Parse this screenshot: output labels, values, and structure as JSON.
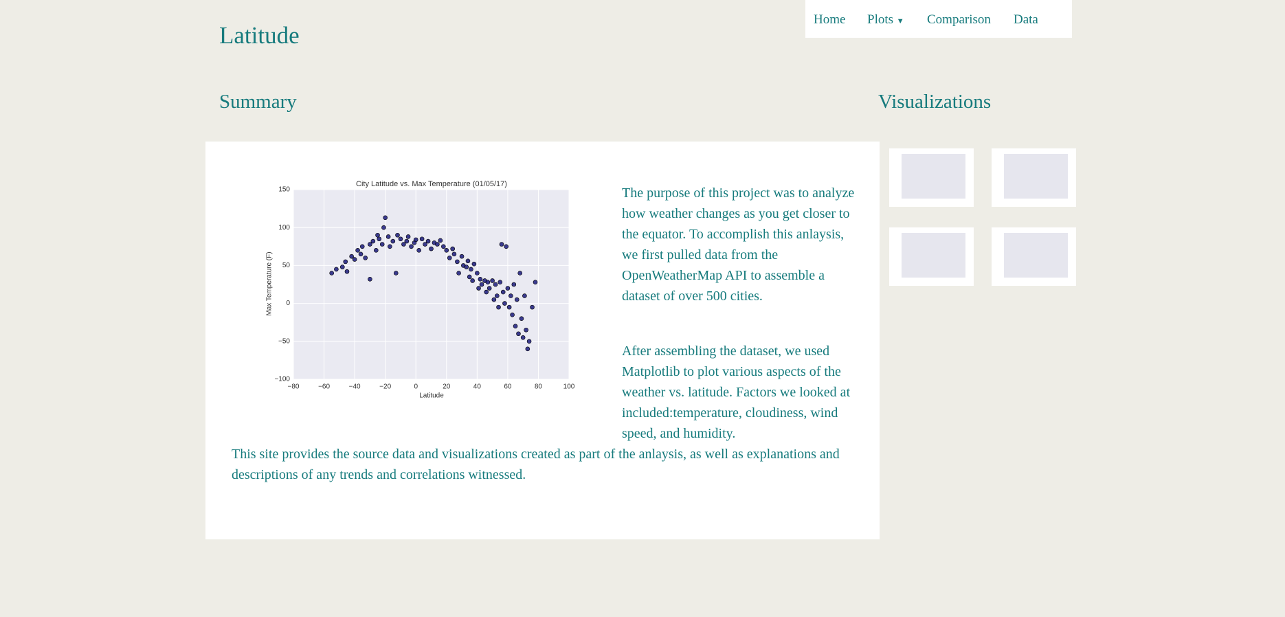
{
  "navbar": {
    "brand": "Latitude",
    "links": [
      "Home",
      "Plots",
      "Comparison",
      "Data"
    ]
  },
  "summary": {
    "heading": "Summary",
    "paragraphs": [
      "The purpose of this project was to analyze how weather changes as you get closer to the equator. To accomplish this anlaysis, we first pulled data from the OpenWeatherMap API to assemble a dataset of over 500 cities.",
      "After assembling the dataset, we used Matplotlib to plot various aspects of the weather vs. latitude. Factors we looked at included:temperature, cloudiness, wind speed, and humidity."
    ],
    "footer_text": "This site provides the source data and visualizations created as part of the anlaysis, as well as explanations and descriptions of any trends and correlations witnessed."
  },
  "visualizations": {
    "heading": "Visualizations"
  },
  "chart_data": {
    "type": "scatter",
    "title": "City Latitude vs. Max Temperature (01/05/17)",
    "x_label": "Latitude",
    "y_label": "Max Temperature (F)",
    "xlim": [
      -80,
      100
    ],
    "ylim": [
      -100,
      150
    ],
    "xticks": [
      {
        "value": -80,
        "label": "−80"
      },
      {
        "value": -60,
        "label": "−60"
      },
      {
        "value": -40,
        "label": "−40"
      },
      {
        "value": -20,
        "label": "−20"
      },
      0,
      20,
      40,
      60,
      80,
      100
    ],
    "yticks": [
      {
        "value": -100,
        "label": "−100"
      },
      {
        "value": -50,
        "label": "−50"
      },
      0,
      50,
      100,
      150
    ],
    "grid": true,
    "color": "#1b1b7d",
    "x": [
      -55,
      -52,
      -48,
      -46,
      -45,
      -42,
      -40,
      -38,
      -36,
      -35,
      -33,
      -30,
      -30,
      -28,
      -26,
      -25,
      -24,
      -22,
      -21,
      -20,
      -18,
      -17,
      -15,
      -13,
      -12,
      -10,
      -8,
      -6,
      -5,
      -3,
      -1,
      0,
      2,
      4,
      6,
      8,
      10,
      12,
      14,
      16,
      18,
      20,
      22,
      24,
      25,
      27,
      28,
      30,
      31,
      33,
      34,
      35,
      36,
      37,
      38,
      40,
      41,
      42,
      43,
      45,
      46,
      47,
      48,
      50,
      51,
      52,
      53,
      54,
      55,
      56,
      57,
      58,
      59,
      60,
      61,
      62,
      63,
      64,
      65,
      66,
      67,
      68,
      69,
      70,
      71,
      72,
      73,
      74,
      76,
      78
    ],
    "values": [
      40,
      45,
      48,
      55,
      42,
      62,
      58,
      70,
      65,
      75,
      60,
      78,
      32,
      82,
      70,
      90,
      85,
      78,
      100,
      113,
      88,
      75,
      82,
      40,
      90,
      85,
      78,
      82,
      88,
      75,
      80,
      84,
      70,
      85,
      78,
      82,
      72,
      80,
      78,
      83,
      75,
      70,
      60,
      72,
      65,
      55,
      40,
      62,
      50,
      48,
      56,
      35,
      45,
      30,
      52,
      40,
      20,
      32,
      25,
      30,
      15,
      28,
      20,
      30,
      5,
      25,
      10,
      -5,
      28,
      78,
      15,
      0,
      75,
      20,
      -5,
      10,
      -15,
      25,
      -30,
      5,
      -40,
      40,
      -20,
      -45,
      10,
      -35,
      -60,
      -50,
      -5,
      28
    ]
  }
}
